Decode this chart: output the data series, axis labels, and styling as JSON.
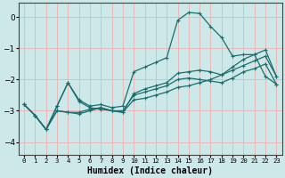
{
  "xlabel": "Humidex (Indice chaleur)",
  "background_color": "#cce8e8",
  "grid_color": "#e8b8b8",
  "line_color": "#1a6e6e",
  "xlim": [
    -0.5,
    23.5
  ],
  "ylim": [
    -4.4,
    0.45
  ],
  "yticks": [
    0,
    -1,
    -2,
    -3,
    -4
  ],
  "xticks": [
    0,
    1,
    2,
    3,
    4,
    5,
    6,
    7,
    8,
    9,
    10,
    11,
    12,
    13,
    14,
    15,
    16,
    17,
    18,
    19,
    20,
    21,
    22,
    23
  ],
  "line1_y": [
    -2.8,
    -3.15,
    -3.6,
    -2.85,
    -2.1,
    -2.65,
    -2.85,
    -2.8,
    -2.9,
    -2.85,
    -1.75,
    -1.6,
    -1.45,
    -1.3,
    -0.1,
    0.15,
    0.12,
    -0.3,
    -0.65,
    -1.25,
    -1.2,
    -1.2,
    -1.9,
    -2.15
  ],
  "line2_y": [
    -2.8,
    -3.15,
    -3.6,
    -3.0,
    -3.05,
    -3.1,
    -3.0,
    -2.9,
    -3.0,
    -3.05,
    -2.65,
    -2.6,
    -2.5,
    -2.4,
    -2.25,
    -2.2,
    -2.1,
    -2.0,
    -1.85,
    -1.7,
    -1.55,
    -1.4,
    -1.25,
    -1.9
  ],
  "line3_y": [
    -2.8,
    -3.15,
    -3.6,
    -2.85,
    -2.1,
    -2.7,
    -2.9,
    -2.95,
    -3.0,
    -3.0,
    -2.5,
    -2.4,
    -2.3,
    -2.2,
    -2.0,
    -1.95,
    -2.0,
    -2.05,
    -2.1,
    -1.95,
    -1.75,
    -1.65,
    -1.5,
    -2.15
  ],
  "line4_y": [
    -2.8,
    -3.15,
    -3.6,
    -3.0,
    -3.05,
    -3.05,
    -2.95,
    -2.9,
    -3.0,
    -3.05,
    -2.45,
    -2.3,
    -2.2,
    -2.1,
    -1.8,
    -1.75,
    -1.7,
    -1.75,
    -1.85,
    -1.6,
    -1.35,
    -1.2,
    -1.05,
    -1.9
  ]
}
